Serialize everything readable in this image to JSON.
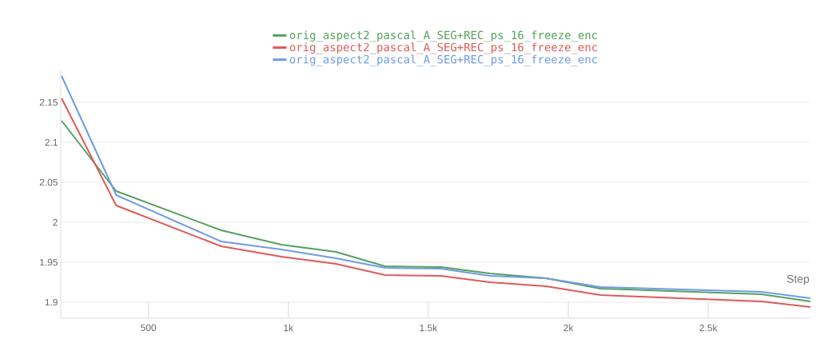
{
  "chart_data": {
    "type": "line",
    "xlabel": "Step",
    "x": [
      190,
      385,
      760,
      975,
      1170,
      1345,
      1545,
      1720,
      1920,
      2115,
      2690,
      2865
    ],
    "series": [
      {
        "name": "orig_aspect2_pascal_A_SEG+REC_ps_16_freeze_enc",
        "color": "#55a05f",
        "values": [
          2.127,
          2.039,
          1.99,
          1.972,
          1.963,
          1.945,
          1.944,
          1.936,
          1.93,
          1.917,
          1.91,
          1.901
        ]
      },
      {
        "name": "orig_aspect2_pascal_A_SEG+REC_ps_16_freeze_enc",
        "color": "#df5a5a",
        "values": [
          2.155,
          2.021,
          1.97,
          1.957,
          1.948,
          1.934,
          1.933,
          1.925,
          1.92,
          1.909,
          1.901,
          1.894
        ]
      },
      {
        "name": "orig_aspect2_pascal_A_SEG+REC_ps_16_freeze_enc",
        "color": "#6f9be6",
        "values": [
          2.183,
          2.034,
          1.976,
          1.966,
          1.955,
          1.943,
          1.942,
          1.933,
          1.93,
          1.919,
          1.913,
          1.905
        ]
      }
    ],
    "xlim": [
      187,
      2865
    ],
    "ylim": [
      1.88,
      2.19
    ],
    "xticks": [
      {
        "value": 500,
        "label": "500"
      },
      {
        "value": 1000,
        "label": "1k"
      },
      {
        "value": 1500,
        "label": "1.5k"
      },
      {
        "value": 2000,
        "label": "2k"
      },
      {
        "value": 2500,
        "label": "2.5k"
      }
    ],
    "yticks": [
      1.9,
      1.95,
      2,
      2.05,
      2.1,
      2.15
    ],
    "grid": "y",
    "legend": "top",
    "marker": "none",
    "line_style": "solid"
  }
}
